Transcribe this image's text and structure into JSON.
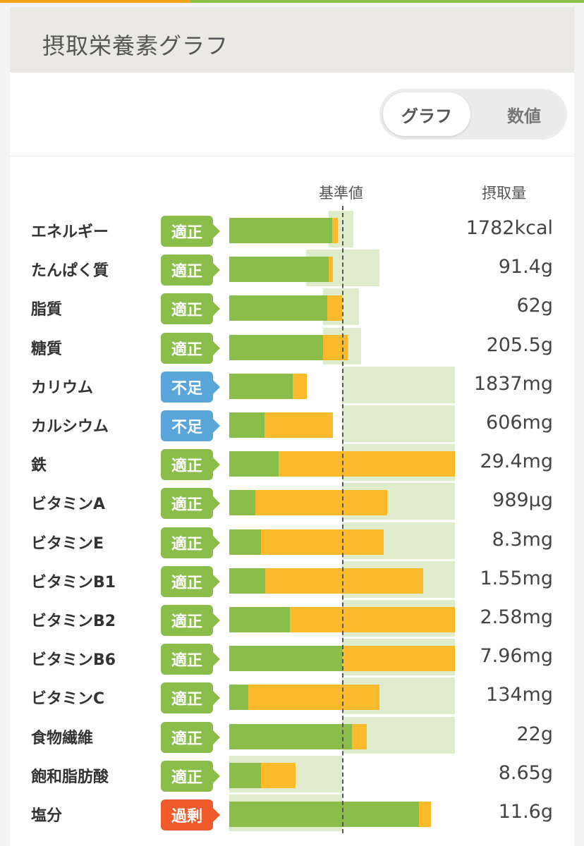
{
  "title": "摂取栄養素グラフ",
  "toggle": {
    "graph_label": "グラフ",
    "numbers_label": "数値"
  },
  "columns": {
    "reference": "基準値",
    "intake": "摂取量"
  },
  "status_colors": {
    "適正": "#8bbd4b",
    "不足": "#5aa6db",
    "過剰": "#f15a2b"
  },
  "nutrients": [
    {
      "name": "エネルギー",
      "status": "適正",
      "value": "1782kcal",
      "green_pct": 91,
      "total_pct": 96,
      "ref_from_pct": 88,
      "ref_to_pct": 110
    },
    {
      "name": "たんぱく質",
      "status": "適正",
      "value": "91.4g",
      "green_pct": 88,
      "total_pct": 92,
      "ref_from_pct": 68,
      "ref_to_pct": 133
    },
    {
      "name": "脂質",
      "status": "適正",
      "value": "62g",
      "green_pct": 87,
      "total_pct": 100,
      "ref_from_pct": 83,
      "ref_to_pct": 115
    },
    {
      "name": "糖質",
      "status": "適正",
      "value": "205.5g",
      "green_pct": 83,
      "total_pct": 105,
      "ref_from_pct": 83,
      "ref_to_pct": 117
    },
    {
      "name": "カリウム",
      "status": "不足",
      "value": "1837mg",
      "green_pct": 56,
      "total_pct": 69,
      "ref_from_pct": 100,
      "ref_to_pct": 200
    },
    {
      "name": "カルシウム",
      "status": "不足",
      "value": "606mg",
      "green_pct": 31,
      "total_pct": 92,
      "ref_from_pct": 100,
      "ref_to_pct": 200
    },
    {
      "name": "鉄",
      "status": "適正",
      "value": "29.4mg",
      "green_pct": 44,
      "total_pct": 200,
      "ref_from_pct": 100,
      "ref_to_pct": 200
    },
    {
      "name": "ビタミンA",
      "status": "適正",
      "value": "989μg",
      "green_pct": 23,
      "total_pct": 140,
      "ref_from_pct": 100,
      "ref_to_pct": 200
    },
    {
      "name": "ビタミンE",
      "status": "適正",
      "value": "8.3mg",
      "green_pct": 28,
      "total_pct": 137,
      "ref_from_pct": 100,
      "ref_to_pct": 200
    },
    {
      "name": "ビタミンB1",
      "status": "適正",
      "value": "1.55mg",
      "green_pct": 32,
      "total_pct": 172,
      "ref_from_pct": 100,
      "ref_to_pct": 200
    },
    {
      "name": "ビタミンB2",
      "status": "適正",
      "value": "2.58mg",
      "green_pct": 54,
      "total_pct": 200,
      "ref_from_pct": 100,
      "ref_to_pct": 200
    },
    {
      "name": "ビタミンB6",
      "status": "適正",
      "value": "7.96mg",
      "green_pct": 100,
      "total_pct": 200,
      "ref_from_pct": 100,
      "ref_to_pct": 200
    },
    {
      "name": "ビタミンC",
      "status": "適正",
      "value": "134mg",
      "green_pct": 17,
      "total_pct": 133,
      "ref_from_pct": 100,
      "ref_to_pct": 200
    },
    {
      "name": "食物繊維",
      "status": "適正",
      "value": "22g",
      "green_pct": 109,
      "total_pct": 122,
      "ref_from_pct": 100,
      "ref_to_pct": 200
    },
    {
      "name": "飽和脂肪酸",
      "status": "適正",
      "value": "8.65g",
      "green_pct": 28,
      "total_pct": 59,
      "ref_from_pct": 0,
      "ref_to_pct": 100
    },
    {
      "name": "塩分",
      "status": "過剰",
      "value": "11.6g",
      "green_pct": 168,
      "total_pct": 179,
      "ref_from_pct": 0,
      "ref_to_pct": 100
    }
  ]
}
